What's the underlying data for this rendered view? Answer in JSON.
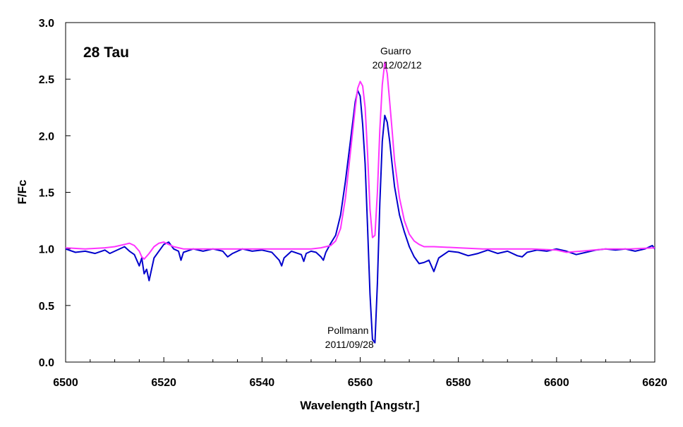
{
  "chart_data": {
    "type": "line",
    "xlabel": "Wavelength [Angstr.]",
    "ylabel": "F/Fc",
    "xlim": [
      6500,
      6620
    ],
    "ylim": [
      0.0,
      3.0
    ],
    "x_ticks": [
      6500,
      6520,
      6540,
      6560,
      6580,
      6600,
      6620
    ],
    "x_tick_labels": [
      "6500",
      "6520",
      "6540",
      "6560",
      "6580",
      "6600",
      "6620"
    ],
    "y_ticks": [
      0.0,
      0.5,
      1.0,
      1.5,
      2.0,
      2.5,
      3.0
    ],
    "y_tick_labels": [
      "0.0",
      "0.5",
      "1.0",
      "1.5",
      "2.0",
      "2.5",
      "3.0"
    ],
    "grid": false,
    "star_label": "28 Tau",
    "annotations": [
      {
        "lines": [
          "Guarro",
          "2012/02/12"
        ],
        "x": 6567.5,
        "y": 2.72,
        "series": "Guarro"
      },
      {
        "lines": [
          "Pollmann",
          "2011/09/28"
        ],
        "x": 6557.8,
        "y": 0.25,
        "series": "Pollmann"
      }
    ],
    "series": [
      {
        "name": "Pollmann",
        "color": "#0000cc",
        "x": [
          6500,
          6502,
          6504,
          6506,
          6508,
          6509,
          6510,
          6512,
          6513,
          6514,
          6515,
          6515.5,
          6516,
          6516.5,
          6517,
          6518,
          6519,
          6520,
          6521,
          6522,
          6523,
          6523.5,
          6524,
          6526,
          6528,
          6530,
          6532,
          6533,
          6534,
          6536,
          6538,
          6540,
          6542,
          6543.5,
          6544,
          6544.5,
          6546,
          6548,
          6548.5,
          6549,
          6550,
          6551,
          6552,
          6552.5,
          6553,
          6554,
          6555,
          6556,
          6557,
          6558,
          6559,
          6559.5,
          6560,
          6560.5,
          6561,
          6561.5,
          6562,
          6562.5,
          6563,
          6563.5,
          6564,
          6564.5,
          6565,
          6565.5,
          6566,
          6566.5,
          6567,
          6568,
          6569,
          6570,
          6571,
          6572,
          6573,
          6574,
          6575,
          6576,
          6578,
          6580,
          6582,
          6584,
          6586,
          6588,
          6590,
          6592,
          6593,
          6594,
          6596,
          6598,
          6600,
          6602,
          6604,
          6606,
          6608,
          6610,
          6612,
          6614,
          6616,
          6618,
          6619.5,
          6620
        ],
        "values": [
          1.0,
          0.97,
          0.98,
          0.96,
          0.99,
          0.96,
          0.98,
          1.02,
          0.98,
          0.95,
          0.85,
          0.92,
          0.78,
          0.82,
          0.72,
          0.92,
          0.98,
          1.04,
          1.06,
          1.0,
          0.98,
          0.9,
          0.97,
          1.0,
          0.98,
          1.0,
          0.98,
          0.93,
          0.96,
          1.0,
          0.98,
          0.99,
          0.97,
          0.9,
          0.85,
          0.92,
          0.98,
          0.95,
          0.89,
          0.96,
          0.98,
          0.97,
          0.93,
          0.9,
          0.97,
          1.05,
          1.12,
          1.3,
          1.6,
          1.95,
          2.3,
          2.4,
          2.35,
          2.1,
          1.75,
          1.2,
          0.6,
          0.2,
          0.17,
          0.7,
          1.4,
          1.95,
          2.18,
          2.12,
          1.95,
          1.75,
          1.55,
          1.3,
          1.15,
          1.02,
          0.93,
          0.87,
          0.88,
          0.9,
          0.8,
          0.92,
          0.98,
          0.97,
          0.94,
          0.96,
          0.99,
          0.96,
          0.98,
          0.94,
          0.93,
          0.97,
          0.99,
          0.98,
          1.0,
          0.98,
          0.95,
          0.97,
          0.99,
          1.0,
          0.99,
          1.0,
          0.98,
          1.0,
          1.03,
          1.0
        ]
      },
      {
        "name": "Guarro",
        "color": "#ff33ff",
        "x": [
          6500,
          6504,
          6508,
          6510,
          6512,
          6513,
          6514,
          6515,
          6515.5,
          6516,
          6517,
          6518,
          6519,
          6520,
          6521,
          6522,
          6524,
          6526,
          6530,
          6535,
          6540,
          6545,
          6550,
          6552,
          6554,
          6555,
          6556,
          6557,
          6558,
          6559,
          6559.5,
          6560,
          6560.5,
          6561,
          6561.5,
          6562,
          6562.5,
          6563,
          6563.5,
          6564,
          6564.5,
          6565,
          6565.5,
          6566,
          6566.5,
          6567,
          6568,
          6569,
          6570,
          6571,
          6572,
          6573,
          6575,
          6580,
          6585,
          6590,
          6595,
          6600,
          6602,
          6605,
          6610,
          6615,
          6620
        ],
        "values": [
          1.01,
          1.0,
          1.01,
          1.02,
          1.04,
          1.05,
          1.03,
          0.98,
          0.93,
          0.91,
          0.96,
          1.02,
          1.05,
          1.06,
          1.04,
          1.02,
          1.0,
          1.0,
          1.0,
          1.0,
          1.0,
          1.0,
          1.0,
          1.01,
          1.03,
          1.07,
          1.18,
          1.45,
          1.85,
          2.25,
          2.42,
          2.48,
          2.44,
          2.25,
          1.85,
          1.35,
          1.1,
          1.12,
          1.5,
          2.05,
          2.45,
          2.65,
          2.55,
          2.3,
          2.05,
          1.78,
          1.45,
          1.25,
          1.13,
          1.07,
          1.04,
          1.02,
          1.02,
          1.01,
          1.0,
          1.0,
          1.0,
          0.99,
          0.97,
          0.98,
          1.0,
          1.0,
          1.01
        ]
      }
    ]
  }
}
